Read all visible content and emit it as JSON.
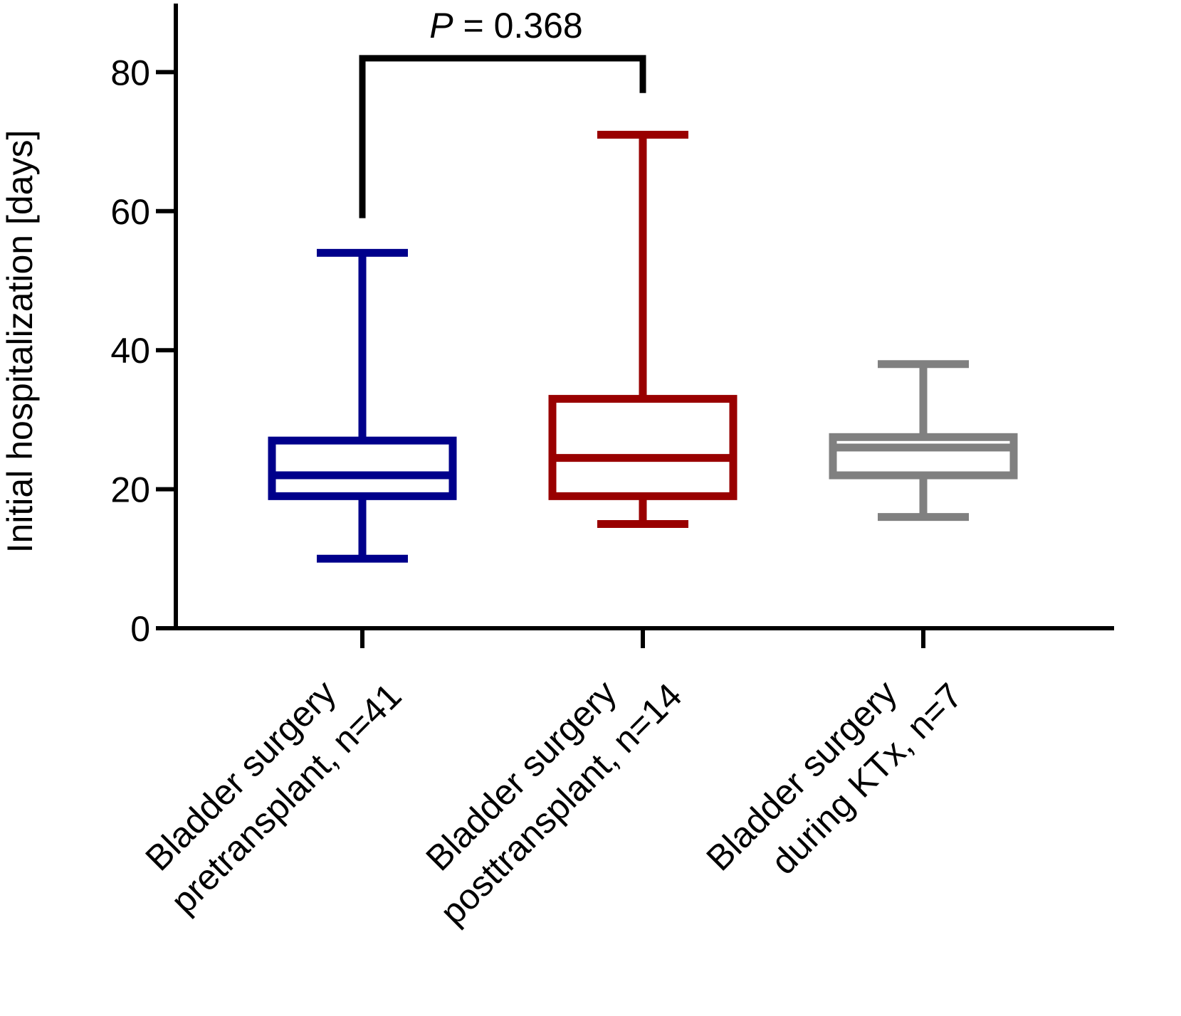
{
  "chart_data": {
    "type": "box",
    "ylabel": "Initial hospitalization [days]",
    "ylim": [
      0,
      90
    ],
    "yticks": [
      0,
      20,
      40,
      60,
      80
    ],
    "grid": false,
    "groups": [
      {
        "label_lines": [
          "Bladder surgery",
          "pretransplant, n=41"
        ],
        "color": "#00008B",
        "min": 10,
        "q1": 19,
        "median": 22,
        "q3": 27,
        "max": 54
      },
      {
        "label_lines": [
          "Bladder surgery",
          "posttransplant, n=14"
        ],
        "color": "#990000",
        "min": 15,
        "q1": 19,
        "median": 24.5,
        "q3": 33,
        "max": 71
      },
      {
        "label_lines": [
          "Bladder surgery",
          "during KTx, n=7"
        ],
        "color": "#808080",
        "min": 16,
        "q1": 22,
        "median": 26,
        "q3": 27.5,
        "max": 38
      }
    ],
    "annotation": {
      "p_italic": "P",
      "p_rest": " = 0.368",
      "from_group": 0,
      "to_group": 1,
      "left_bottom_value": 59,
      "right_bottom_value": 77,
      "top_value": 82
    }
  }
}
